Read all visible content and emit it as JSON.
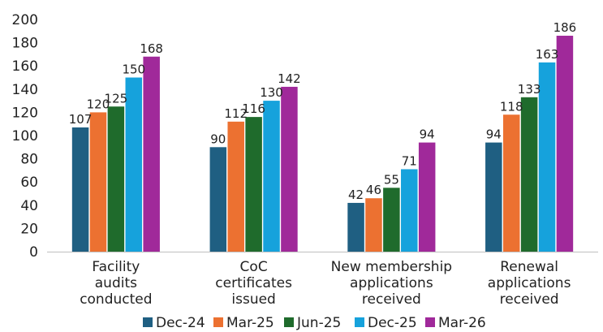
{
  "chart_data": {
    "type": "bar",
    "title": "",
    "xlabel": "",
    "ylabel": "",
    "ylim": [
      0,
      200
    ],
    "yticks": [
      0,
      20,
      40,
      60,
      80,
      100,
      120,
      140,
      160,
      180,
      200
    ],
    "grid": false,
    "legend_position": "bottom",
    "categories": [
      [
        "Facility",
        "audits",
        "conducted"
      ],
      [
        "CoC",
        "certificates",
        "issued"
      ],
      [
        "New membership",
        "applications",
        "received"
      ],
      [
        "Renewal",
        "applications",
        "received"
      ]
    ],
    "series": [
      {
        "name": "Dec-24",
        "color": "#1f5f82",
        "values": [
          107,
          90,
          42,
          94
        ]
      },
      {
        "name": "Mar-25",
        "color": "#ec7131",
        "values": [
          120,
          112,
          46,
          118
        ]
      },
      {
        "name": "Jun-25",
        "color": "#1f6b2c",
        "values": [
          125,
          116,
          55,
          133
        ]
      },
      {
        "name": "Dec-25",
        "color": "#16a2dc",
        "values": [
          150,
          130,
          71,
          163
        ]
      },
      {
        "name": "Mar-26",
        "color": "#a0299a",
        "values": [
          168,
          142,
          94,
          186
        ]
      }
    ]
  }
}
